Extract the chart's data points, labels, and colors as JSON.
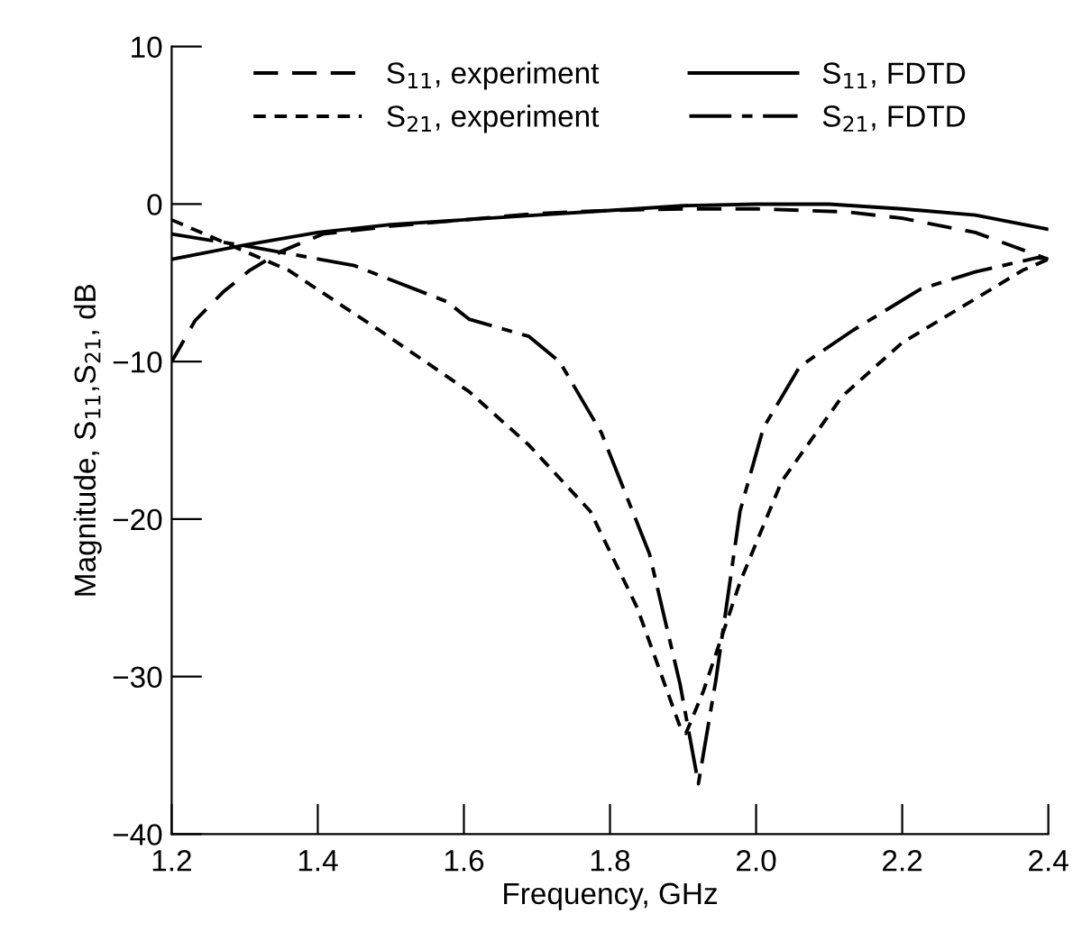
{
  "chart_data": {
    "type": "line",
    "xlabel": "Frequency, GHz",
    "ylabel": "Magnitude, S$_{11}$,S$_{21}$, dB",
    "xlim": [
      1.2,
      2.4
    ],
    "ylim": [
      -40,
      10
    ],
    "xticks": [
      {
        "value": 1.2,
        "label": "1.2"
      },
      {
        "value": 1.4,
        "label": "1.4"
      },
      {
        "value": 1.6,
        "label": "1.6"
      },
      {
        "value": 1.8,
        "label": "1.8"
      },
      {
        "value": 2.0,
        "label": "2.0"
      },
      {
        "value": 2.2,
        "label": "2.2"
      },
      {
        "value": 2.4,
        "label": "2.4"
      }
    ],
    "yticks": [
      -40,
      -30,
      -20,
      -10,
      0,
      10
    ],
    "grid": false,
    "legend": "top",
    "marker": "none",
    "series": [
      {
        "name": "S$_{11}$, experiment",
        "color": "#000000",
        "line_style": "dashed",
        "x": [
          1.2,
          1.232,
          1.27,
          1.307,
          1.35,
          1.407,
          1.5,
          1.6,
          1.7,
          1.8,
          1.9,
          2.0,
          2.125,
          2.2,
          2.3,
          2.4
        ],
        "values": [
          -10,
          -7.4,
          -5.6,
          -4.2,
          -3.0,
          -1.9,
          -1.4,
          -1.0,
          -0.6,
          -0.4,
          -0.3,
          -0.3,
          -0.5,
          -0.9,
          -1.8,
          -3.5
        ]
      },
      {
        "name": "S$_{21}$, experiment",
        "color": "#000000",
        "line_style": "dotted",
        "x": [
          1.2,
          1.25,
          1.3,
          1.36,
          1.484,
          1.607,
          1.689,
          1.773,
          1.837,
          1.896,
          1.904,
          1.928,
          1.978,
          2.035,
          2.118,
          2.2,
          2.365,
          2.4
        ],
        "values": [
          -1,
          -2,
          -3,
          -4.2,
          -8.0,
          -11.9,
          -15.3,
          -19.5,
          -25.6,
          -33.2,
          -33.6,
          -30.9,
          -24,
          -17.6,
          -12.2,
          -8.8,
          -4.2,
          -3.5
        ]
      },
      {
        "name": "S$_{11}$, FDTD",
        "color": "#000000",
        "line_style": "solid",
        "x": [
          1.2,
          1.3,
          1.4,
          1.5,
          1.6,
          1.7,
          1.8,
          1.9,
          2.0,
          2.1,
          2.2,
          2.3,
          2.4
        ],
        "values": [
          -3.5,
          -2.6,
          -1.8,
          -1.3,
          -1.0,
          -0.7,
          -0.4,
          -0.1,
          0,
          0,
          -0.3,
          -0.7,
          -1.6
        ]
      },
      {
        "name": "S$_{21}$, FDTD",
        "color": "#000000",
        "line_style": "dashdot",
        "x": [
          1.2,
          1.307,
          1.45,
          1.577,
          1.607,
          1.689,
          1.731,
          1.788,
          1.854,
          1.896,
          1.921,
          1.945,
          1.978,
          2.01,
          2.06,
          2.133,
          2.225,
          2.3,
          2.385,
          2.4
        ],
        "values": [
          -1.9,
          -2.7,
          -3.9,
          -6.2,
          -7.3,
          -8.4,
          -10,
          -14.5,
          -22.2,
          -30.5,
          -36.8,
          -30.2,
          -19.5,
          -14.2,
          -10.3,
          -8.0,
          -5.4,
          -4.3,
          -3.4,
          -3.5
        ]
      }
    ]
  }
}
